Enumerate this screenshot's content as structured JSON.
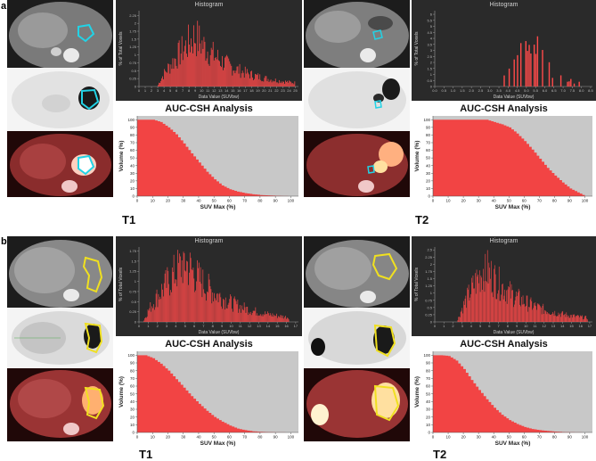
{
  "panel_a": {
    "letter": "a",
    "T1": {
      "label": "T1",
      "histogram": {
        "title": "Histogram",
        "xlabel": "Data Value (SUVbw)",
        "ylabel": "% of Total Voxels",
        "x_ticks": [
          "0",
          "1",
          "2",
          "3",
          "4",
          "5",
          "6",
          "7",
          "8",
          "9",
          "10",
          "11",
          "12",
          "13",
          "14",
          "15",
          "16",
          "17",
          "18",
          "19",
          "20",
          "21",
          "22",
          "23",
          "24",
          "25"
        ],
        "y_ticks": [
          "0",
          "0.25",
          "0.5",
          "0.75",
          "1",
          "1.25",
          "1.5",
          "1.75",
          "2",
          "2.25"
        ]
      },
      "auc_title": "AUC-CSH Analysis",
      "csh": {
        "xlabel": "SUV Max (%)",
        "ylabel": "Volume (%)",
        "x_ticks": [
          "0",
          "10",
          "20",
          "30",
          "40",
          "50",
          "60",
          "70",
          "80",
          "90",
          "100"
        ],
        "y_ticks": [
          "0",
          "10",
          "20",
          "30",
          "40",
          "50",
          "60",
          "70",
          "80",
          "90",
          "100"
        ]
      }
    },
    "T2": {
      "label": "T2",
      "histogram": {
        "title": "Histogram",
        "xlabel": "Data Value (SUVbw)",
        "ylabel": "% of Total Voxels",
        "x_ticks": [
          "0.0",
          "0.5",
          "1.0",
          "1.5",
          "2.0",
          "2.5",
          "3.0",
          "3.5",
          "4.0",
          "4.5",
          "5.0",
          "5.5",
          "6.0",
          "6.5",
          "7.0",
          "7.5",
          "8.0",
          "8.5"
        ],
        "y_ticks": [
          "0",
          "0.5",
          "1",
          "1.5",
          "2",
          "2.5",
          "3",
          "3.5",
          "4",
          "4.5",
          "5",
          "5.5",
          "6"
        ]
      },
      "auc_title": "AUC-CSH Analysis",
      "csh": {
        "xlabel": "SUV Max (%)",
        "ylabel": "Volume (%)",
        "x_ticks": [
          "0",
          "10",
          "20",
          "30",
          "40",
          "50",
          "60",
          "70",
          "80",
          "90",
          "100"
        ],
        "y_ticks": [
          "0",
          "10",
          "20",
          "30",
          "40",
          "50",
          "60",
          "70",
          "80",
          "90",
          "100"
        ]
      }
    }
  },
  "panel_b": {
    "letter": "b",
    "T1": {
      "label": "T1",
      "histogram": {
        "title": "Histogram",
        "xlabel": "Data Value (SUVbw)",
        "ylabel": "% of Total Voxels",
        "x_ticks": [
          "0",
          "1",
          "2",
          "3",
          "4",
          "5",
          "6",
          "7",
          "8",
          "9",
          "10",
          "11",
          "12",
          "13",
          "14",
          "15",
          "16",
          "17"
        ],
        "y_ticks": [
          "0",
          "0.25",
          "0.5",
          "0.75",
          "1",
          "1.25",
          "1.5",
          "1.75"
        ]
      },
      "auc_title": "AUC-CSH Analysis",
      "csh": {
        "xlabel": "SUV Max (%)",
        "ylabel": "Volume (%)",
        "x_ticks": [
          "0",
          "10",
          "20",
          "30",
          "40",
          "50",
          "60",
          "70",
          "80",
          "90",
          "100"
        ],
        "y_ticks": [
          "0",
          "10",
          "20",
          "30",
          "40",
          "50",
          "60",
          "70",
          "80",
          "90",
          "100"
        ]
      }
    },
    "T2": {
      "label": "T2",
      "histogram": {
        "title": "Histogram",
        "xlabel": "Data Value (SUVbw)",
        "ylabel": "% of Total Voxels",
        "x_ticks": [
          "0",
          "1",
          "2",
          "3",
          "4",
          "5",
          "6",
          "7",
          "8",
          "9",
          "10",
          "11",
          "12",
          "13",
          "14",
          "15",
          "16",
          "17"
        ],
        "y_ticks": [
          "0",
          "0.25",
          "0.5",
          "0.75",
          "1",
          "1.25",
          "1.5",
          "1.75",
          "2",
          "2.25",
          "2.5"
        ]
      },
      "auc_title": "AUC-CSH Analysis",
      "csh": {
        "xlabel": "SUV Max (%)",
        "ylabel": "Volume (%)",
        "x_ticks": [
          "0",
          "10",
          "20",
          "30",
          "40",
          "50",
          "60",
          "70",
          "80",
          "90",
          "100"
        ],
        "y_ticks": [
          "0",
          "10",
          "20",
          "30",
          "40",
          "50",
          "60",
          "70",
          "80",
          "90",
          "100"
        ]
      }
    }
  },
  "colors": {
    "bar": "#ff4a4a",
    "csh_fill": "#f24444",
    "csh_background": "#c8c8c8",
    "hist_background": "#2a2a2a",
    "contour_a": "#22d3e6",
    "contour_b": "#f0e020"
  },
  "chart_data": [
    {
      "id": "a-T1-histogram",
      "type": "bar",
      "title": "Histogram",
      "xlabel": "Data Value (SUVbw)",
      "ylabel": "% of Total Voxels",
      "xlim": [
        0,
        25.5
      ],
      "ylim": [
        0,
        2.4
      ],
      "profile": {
        "shape": "skewed",
        "start": 3.0,
        "peak": 9.0,
        "end": 25.0,
        "peak_value": 1.6,
        "max_value": 2.3,
        "bins": 150
      }
    },
    {
      "id": "a-T1-csh",
      "type": "area",
      "title": "AUC-CSH Analysis",
      "xlabel": "SUV Max (%)",
      "ylabel": "Volume (%)",
      "xlim": [
        0,
        105
      ],
      "ylim": [
        0,
        105
      ],
      "x": [
        0,
        10,
        15,
        20,
        25,
        30,
        35,
        40,
        45,
        50,
        55,
        60,
        65,
        70,
        75,
        80,
        85,
        90,
        95,
        100
      ],
      "y": [
        100,
        100,
        97,
        90,
        81,
        69,
        56,
        44,
        32,
        22,
        14,
        9,
        6,
        4,
        2.5,
        1.5,
        1,
        0.5,
        0.2,
        0
      ]
    },
    {
      "id": "a-T2-histogram",
      "type": "bar",
      "title": "Histogram",
      "xlabel": "Data Value (SUVbw)",
      "ylabel": "% of Total Voxels",
      "xlim": [
        0,
        8.6
      ],
      "ylim": [
        0,
        6.3
      ],
      "profile": {
        "shape": "sparse",
        "start": 3.3,
        "peak": 5.5,
        "end": 8.3,
        "peak_value": 3.0,
        "max_value": 6.0,
        "bins": 55
      }
    },
    {
      "id": "a-T2-csh",
      "type": "area",
      "title": "AUC-CSH Analysis",
      "xlabel": "SUV Max (%)",
      "ylabel": "Volume (%)",
      "xlim": [
        0,
        105
      ],
      "ylim": [
        0,
        105
      ],
      "x": [
        0,
        35,
        40,
        45,
        50,
        55,
        60,
        65,
        70,
        75,
        80,
        85,
        90,
        95,
        100
      ],
      "y": [
        100,
        100,
        97,
        94,
        90,
        82,
        72,
        61,
        49,
        37,
        27,
        18,
        10,
        5,
        0
      ]
    },
    {
      "id": "b-T1-histogram",
      "type": "bar",
      "title": "Histogram",
      "xlabel": "Data Value (SUVbw)",
      "ylabel": "% of Total Voxels",
      "xlim": [
        0,
        17.3
      ],
      "ylim": [
        0,
        1.85
      ],
      "profile": {
        "shape": "skewed",
        "start": 0.5,
        "peak": 5.0,
        "end": 16.3,
        "peak_value": 1.5,
        "max_value": 1.8,
        "bins": 180
      }
    },
    {
      "id": "b-T1-csh",
      "type": "area",
      "title": "AUC-CSH Analysis",
      "xlabel": "SUV Max (%)",
      "ylabel": "Volume (%)",
      "xlim": [
        0,
        105
      ],
      "ylim": [
        0,
        105
      ],
      "x": [
        0,
        5,
        10,
        15,
        20,
        25,
        30,
        35,
        40,
        45,
        50,
        55,
        60,
        65,
        70,
        75,
        80,
        90,
        100
      ],
      "y": [
        100,
        100,
        96,
        89,
        80,
        69,
        58,
        47,
        37,
        28,
        20,
        14,
        9,
        5,
        3,
        1.5,
        0.8,
        0.2,
        0
      ]
    },
    {
      "id": "b-T2-histogram",
      "type": "bar",
      "title": "Histogram",
      "xlabel": "Data Value (SUVbw)",
      "ylabel": "% of Total Voxels",
      "xlim": [
        0,
        17.3
      ],
      "ylim": [
        0,
        2.6
      ],
      "profile": {
        "shape": "skewed",
        "start": 2.5,
        "peak": 5.5,
        "end": 16.8,
        "peak_value": 1.9,
        "max_value": 2.5,
        "bins": 180
      }
    },
    {
      "id": "b-T2-csh",
      "type": "area",
      "title": "AUC-CSH Analysis",
      "xlabel": "SUV Max (%)",
      "ylabel": "Volume (%)",
      "xlim": [
        0,
        105
      ],
      "ylim": [
        0,
        105
      ],
      "x": [
        0,
        5,
        10,
        15,
        20,
        25,
        30,
        35,
        40,
        45,
        50,
        55,
        60,
        65,
        70,
        75,
        80,
        85,
        90,
        100
      ],
      "y": [
        100,
        100,
        99,
        93,
        82,
        68,
        55,
        43,
        32,
        23,
        16,
        11,
        7,
        4.5,
        3,
        2,
        1.2,
        0.6,
        0.3,
        0
      ]
    }
  ]
}
